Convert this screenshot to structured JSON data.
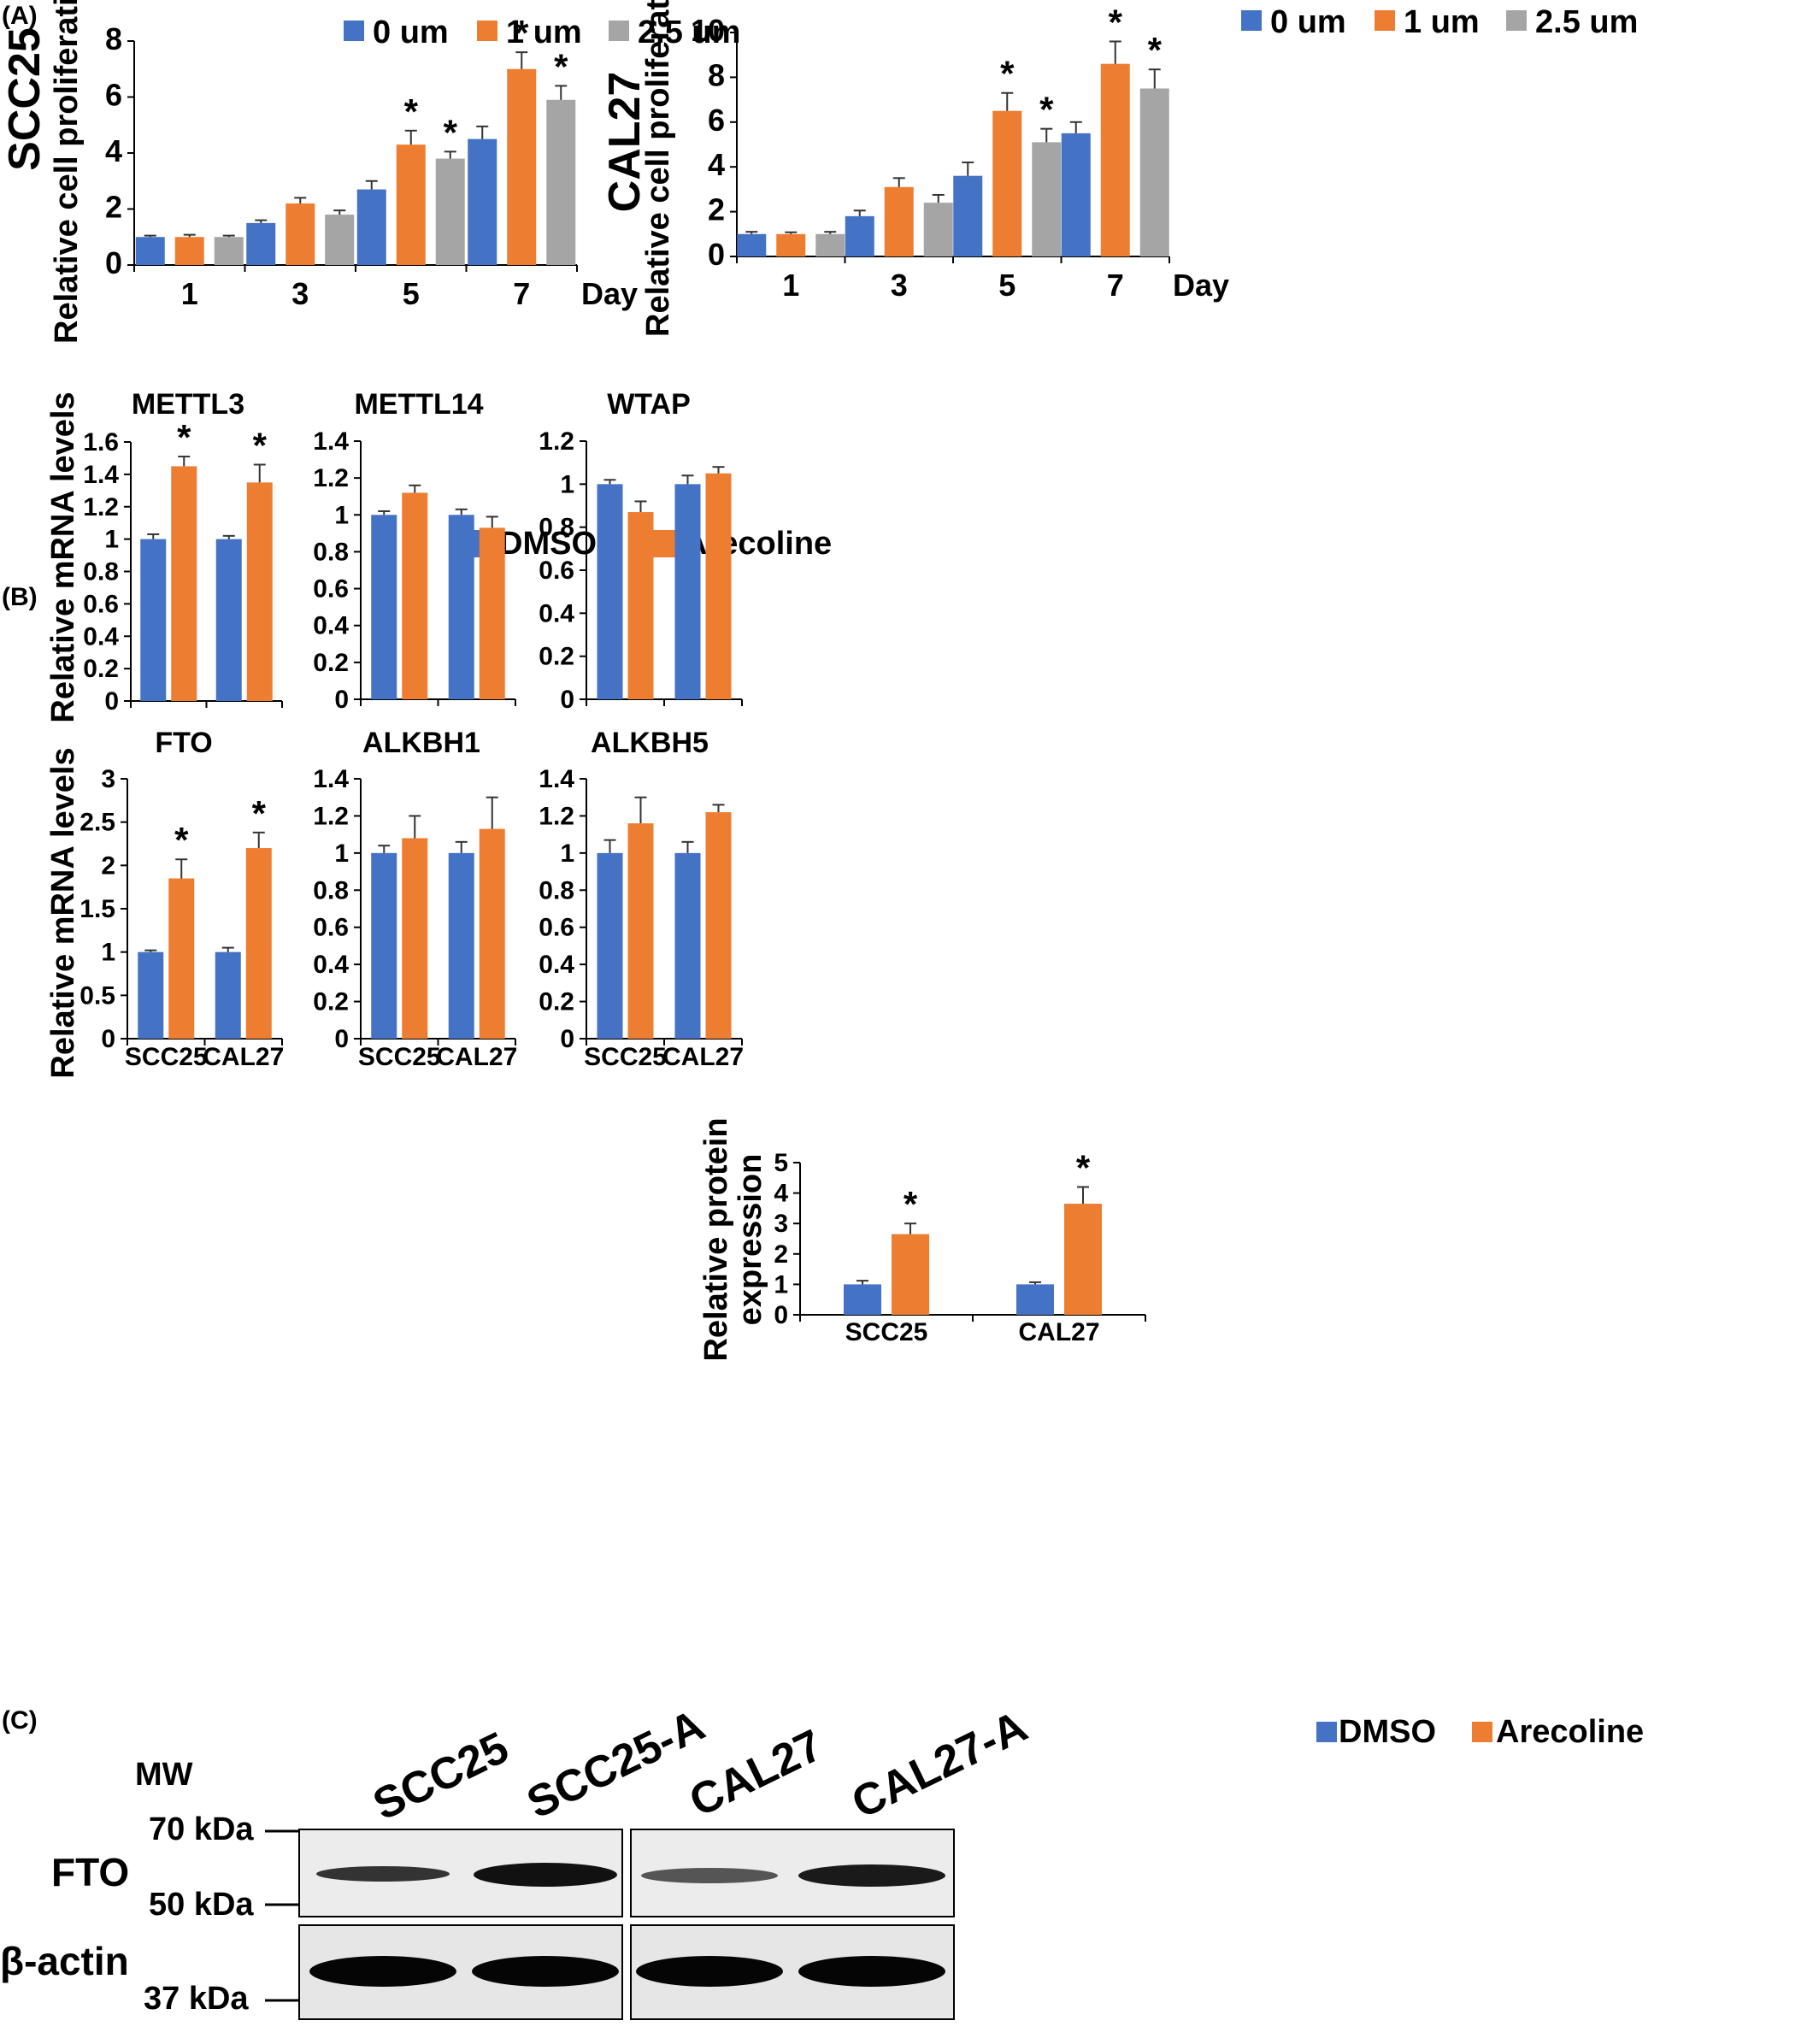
{
  "colors": {
    "blue": "#4472C4",
    "orange": "#ED7D31",
    "gray": "#A5A5A5",
    "fto_red": "#E00000"
  },
  "panel_a": {
    "letter": "(A)",
    "legend": [
      "0 um",
      "1 um",
      "2.5 um"
    ]
  },
  "panel_b": {
    "letter": "(B)",
    "legend": [
      "DMSO",
      "Arecoline"
    ]
  },
  "panel_c": {
    "letter": "(C)",
    "blot": {
      "mw_label": "MW",
      "lanes": [
        "SCC25",
        "SCC25-A",
        "CAL27",
        "CAL27-A"
      ],
      "markers": [
        "70 kDa",
        "50 kDa",
        "37 kDa"
      ],
      "rows": [
        "FTO",
        "β-actin"
      ]
    },
    "legend": [
      "DMSO",
      "Arecoline"
    ]
  },
  "chart_data": [
    {
      "id": "a1",
      "type": "bar",
      "title": "SCC25",
      "xlabel": "Day",
      "ylabel": "Relative cell proliferation",
      "categories": [
        "1",
        "3",
        "5",
        "7"
      ],
      "ylim": [
        0,
        8
      ],
      "yticks": [
        0,
        2,
        4,
        6,
        8
      ],
      "series": [
        {
          "name": "0 um",
          "values": [
            1.0,
            1.5,
            2.7,
            4.5
          ],
          "errors": [
            0.05,
            0.1,
            0.3,
            0.45
          ],
          "stars": [
            false,
            false,
            false,
            false
          ]
        },
        {
          "name": "1 um",
          "values": [
            1.0,
            2.2,
            4.3,
            7.0
          ],
          "errors": [
            0.08,
            0.2,
            0.5,
            0.6
          ],
          "stars": [
            false,
            false,
            true,
            true
          ]
        },
        {
          "name": "2.5 um",
          "values": [
            1.0,
            1.8,
            3.8,
            5.9
          ],
          "errors": [
            0.05,
            0.15,
            0.25,
            0.5
          ],
          "stars": [
            false,
            false,
            true,
            true
          ]
        }
      ]
    },
    {
      "id": "a2",
      "type": "bar",
      "title": "CAL27",
      "xlabel": "Day",
      "ylabel": "Relative cell proliferation",
      "categories": [
        "1",
        "3",
        "5",
        "7"
      ],
      "ylim": [
        0,
        10
      ],
      "yticks": [
        0,
        2,
        4,
        6,
        8,
        10
      ],
      "series": [
        {
          "name": "0 um",
          "values": [
            1.0,
            1.8,
            3.6,
            5.5
          ],
          "errors": [
            0.1,
            0.25,
            0.6,
            0.5
          ],
          "stars": [
            false,
            false,
            false,
            false
          ]
        },
        {
          "name": "1 um",
          "values": [
            1.0,
            3.1,
            6.5,
            8.6
          ],
          "errors": [
            0.08,
            0.4,
            0.8,
            1.0
          ],
          "stars": [
            false,
            false,
            true,
            true
          ]
        },
        {
          "name": "2.5 um",
          "values": [
            1.0,
            2.4,
            5.1,
            7.5
          ],
          "errors": [
            0.1,
            0.35,
            0.6,
            0.85
          ],
          "stars": [
            false,
            false,
            true,
            true
          ]
        }
      ]
    },
    {
      "id": "b1",
      "type": "bar",
      "title": "METTL3",
      "ylabel": "Relative mRNA levels",
      "categories": [
        "SCC25",
        "CAL27"
      ],
      "show_xticks": false,
      "ylim": [
        0,
        1.6
      ],
      "yticks": [
        0,
        0.2,
        0.4,
        0.6,
        0.8,
        1,
        1.2,
        1.4,
        1.6
      ],
      "series": [
        {
          "name": "DMSO",
          "values": [
            1.0,
            1.0
          ],
          "errors": [
            0.03,
            0.02
          ],
          "stars": [
            false,
            false
          ]
        },
        {
          "name": "Arecoline",
          "values": [
            1.45,
            1.35
          ],
          "errors": [
            0.06,
            0.11
          ],
          "stars": [
            true,
            true
          ]
        }
      ]
    },
    {
      "id": "b2",
      "type": "bar",
      "title": "METTL14",
      "categories": [
        "SCC25",
        "CAL27"
      ],
      "show_xticks": false,
      "ylim": [
        0,
        1.4
      ],
      "yticks": [
        0,
        0.2,
        0.4,
        0.6,
        0.8,
        1,
        1.2,
        1.4
      ],
      "series": [
        {
          "name": "DMSO",
          "values": [
            1.0,
            1.0
          ],
          "errors": [
            0.02,
            0.03
          ],
          "stars": [
            false,
            false
          ]
        },
        {
          "name": "Arecoline",
          "values": [
            1.12,
            0.93
          ],
          "errors": [
            0.04,
            0.06
          ],
          "stars": [
            false,
            false
          ]
        }
      ]
    },
    {
      "id": "b3",
      "type": "bar",
      "title": "WTAP",
      "categories": [
        "SCC25",
        "CAL27"
      ],
      "show_xticks": false,
      "ylim": [
        0,
        1.2
      ],
      "yticks": [
        0,
        0.2,
        0.4,
        0.6,
        0.8,
        1,
        1.2
      ],
      "series": [
        {
          "name": "DMSO",
          "values": [
            1.0,
            1.0
          ],
          "errors": [
            0.02,
            0.04
          ],
          "stars": [
            false,
            false
          ]
        },
        {
          "name": "Arecoline",
          "values": [
            0.87,
            1.05
          ],
          "errors": [
            0.05,
            0.03
          ],
          "stars": [
            false,
            false
          ]
        }
      ]
    },
    {
      "id": "b4",
      "type": "bar",
      "title": "FTO",
      "title_color": "fto_red",
      "ylabel": "Relative mRNA levels",
      "categories": [
        "SCC25",
        "CAL27"
      ],
      "show_xticks": true,
      "ylim": [
        0,
        3
      ],
      "yticks": [
        0,
        0.5,
        1,
        1.5,
        2,
        2.5,
        3
      ],
      "series": [
        {
          "name": "DMSO",
          "values": [
            1.0,
            1.0
          ],
          "errors": [
            0.02,
            0.05
          ],
          "stars": [
            false,
            false
          ]
        },
        {
          "name": "Arecoline",
          "values": [
            1.85,
            2.2
          ],
          "errors": [
            0.22,
            0.18
          ],
          "stars": [
            true,
            true
          ]
        }
      ]
    },
    {
      "id": "b5",
      "type": "bar",
      "title": "ALKBH1",
      "categories": [
        "SCC25",
        "CAL27"
      ],
      "show_xticks": true,
      "ylim": [
        0,
        1.4
      ],
      "yticks": [
        0,
        0.2,
        0.4,
        0.6,
        0.8,
        1,
        1.2,
        1.4
      ],
      "series": [
        {
          "name": "DMSO",
          "values": [
            1.0,
            1.0
          ],
          "errors": [
            0.04,
            0.06
          ],
          "stars": [
            false,
            false
          ]
        },
        {
          "name": "Arecoline",
          "values": [
            1.08,
            1.13
          ],
          "errors": [
            0.12,
            0.17
          ],
          "stars": [
            false,
            false
          ]
        }
      ]
    },
    {
      "id": "b6",
      "type": "bar",
      "title": "ALKBH5",
      "categories": [
        "SCC25",
        "CAL27"
      ],
      "show_xticks": true,
      "ylim": [
        0,
        1.4
      ],
      "yticks": [
        0,
        0.2,
        0.4,
        0.6,
        0.8,
        1,
        1.2,
        1.4
      ],
      "series": [
        {
          "name": "DMSO",
          "values": [
            1.0,
            1.0
          ],
          "errors": [
            0.07,
            0.06
          ],
          "stars": [
            false,
            false
          ]
        },
        {
          "name": "Arecoline",
          "values": [
            1.16,
            1.22
          ],
          "errors": [
            0.14,
            0.04
          ],
          "stars": [
            false,
            false
          ]
        }
      ]
    },
    {
      "id": "c1",
      "type": "bar",
      "ylabel": "Relative protein expression",
      "ylabel_lines": [
        "Relative protein",
        "expression"
      ],
      "categories": [
        "SCC25",
        "CAL27"
      ],
      "show_xticks": true,
      "ylim": [
        0,
        5
      ],
      "yticks": [
        0,
        1,
        2,
        3,
        4,
        5
      ],
      "series": [
        {
          "name": "DMSO",
          "values": [
            1.0,
            1.0
          ],
          "errors": [
            0.12,
            0.07
          ],
          "stars": [
            false,
            false
          ]
        },
        {
          "name": "Arecoline",
          "values": [
            2.65,
            3.65
          ],
          "errors": [
            0.35,
            0.55
          ],
          "stars": [
            true,
            true
          ]
        }
      ]
    }
  ]
}
